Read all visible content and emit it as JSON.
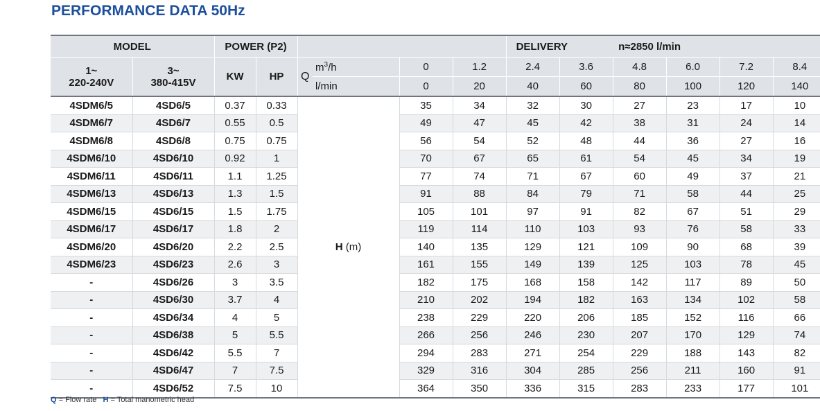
{
  "title": "PERFORMANCE DATA 50Hz",
  "headers": {
    "model": "MODEL",
    "power": "POWER (P2)",
    "delivery": "DELIVERY",
    "speed": "n≈2850 l/min",
    "single_phase_line1": "1~",
    "single_phase_line2": "220-240V",
    "three_phase_line1": "3~",
    "three_phase_line2": "380-415V",
    "kw": "KW",
    "hp": "HP",
    "q": "Q",
    "unit_m3h_base": "m",
    "unit_m3h_sup": "3",
    "unit_m3h_tail": "/h",
    "unit_lmin": "l/min",
    "h_label": "H",
    "h_unit": "(m)"
  },
  "flow_m3h": [
    "0",
    "1.2",
    "2.4",
    "3.6",
    "4.8",
    "6.0",
    "7.2",
    "8.4"
  ],
  "flow_lmin": [
    "0",
    "20",
    "40",
    "60",
    "80",
    "100",
    "120",
    "140"
  ],
  "rows": [
    {
      "m1": "4SDM6/5",
      "m3": "4SD6/5",
      "kw": "0.37",
      "hp": "0.33",
      "h": [
        "35",
        "34",
        "32",
        "30",
        "27",
        "23",
        "17",
        "10"
      ]
    },
    {
      "m1": "4SDM6/7",
      "m3": "4SD6/7",
      "kw": "0.55",
      "hp": "0.5",
      "h": [
        "49",
        "47",
        "45",
        "42",
        "38",
        "31",
        "24",
        "14"
      ]
    },
    {
      "m1": "4SDM6/8",
      "m3": "4SD6/8",
      "kw": "0.75",
      "hp": "0.75",
      "h": [
        "56",
        "54",
        "52",
        "48",
        "44",
        "36",
        "27",
        "16"
      ]
    },
    {
      "m1": "4SDM6/10",
      "m3": "4SD6/10",
      "kw": "0.92",
      "hp": "1",
      "h": [
        "70",
        "67",
        "65",
        "61",
        "54",
        "45",
        "34",
        "19"
      ]
    },
    {
      "m1": "4SDM6/11",
      "m3": "4SD6/11",
      "kw": "1.1",
      "hp": "1.25",
      "h": [
        "77",
        "74",
        "71",
        "67",
        "60",
        "49",
        "37",
        "21"
      ]
    },
    {
      "m1": "4SDM6/13",
      "m3": "4SD6/13",
      "kw": "1.3",
      "hp": "1.5",
      "h": [
        "91",
        "88",
        "84",
        "79",
        "71",
        "58",
        "44",
        "25"
      ]
    },
    {
      "m1": "4SDM6/15",
      "m3": "4SD6/15",
      "kw": "1.5",
      "hp": "1.75",
      "h": [
        "105",
        "101",
        "97",
        "91",
        "82",
        "67",
        "51",
        "29"
      ]
    },
    {
      "m1": "4SDM6/17",
      "m3": "4SD6/17",
      "kw": "1.8",
      "hp": "2",
      "h": [
        "119",
        "114",
        "110",
        "103",
        "93",
        "76",
        "58",
        "33"
      ]
    },
    {
      "m1": "4SDM6/20",
      "m3": "4SD6/20",
      "kw": "2.2",
      "hp": "2.5",
      "h": [
        "140",
        "135",
        "129",
        "121",
        "109",
        "90",
        "68",
        "39"
      ]
    },
    {
      "m1": "4SDM6/23",
      "m3": "4SD6/23",
      "kw": "2.6",
      "hp": "3",
      "h": [
        "161",
        "155",
        "149",
        "139",
        "125",
        "103",
        "78",
        "45"
      ]
    },
    {
      "m1": "-",
      "m3": "4SD6/26",
      "kw": "3",
      "hp": "3.5",
      "h": [
        "182",
        "175",
        "168",
        "158",
        "142",
        "117",
        "89",
        "50"
      ]
    },
    {
      "m1": "-",
      "m3": "4SD6/30",
      "kw": "3.7",
      "hp": "4",
      "h": [
        "210",
        "202",
        "194",
        "182",
        "163",
        "134",
        "102",
        "58"
      ]
    },
    {
      "m1": "-",
      "m3": "4SD6/34",
      "kw": "4",
      "hp": "5",
      "h": [
        "238",
        "229",
        "220",
        "206",
        "185",
        "152",
        "116",
        "66"
      ]
    },
    {
      "m1": "-",
      "m3": "4SD6/38",
      "kw": "5",
      "hp": "5.5",
      "h": [
        "266",
        "256",
        "246",
        "230",
        "207",
        "170",
        "129",
        "74"
      ]
    },
    {
      "m1": "-",
      "m3": "4SD6/42",
      "kw": "5.5",
      "hp": "7",
      "h": [
        "294",
        "283",
        "271",
        "254",
        "229",
        "188",
        "143",
        "82"
      ]
    },
    {
      "m1": "-",
      "m3": "4SD6/47",
      "kw": "7",
      "hp": "7.5",
      "h": [
        "329",
        "316",
        "304",
        "285",
        "256",
        "211",
        "160",
        "91"
      ]
    },
    {
      "m1": "-",
      "m3": "4SD6/52",
      "kw": "7.5",
      "hp": "10",
      "h": [
        "364",
        "350",
        "336",
        "315",
        "283",
        "233",
        "177",
        "101"
      ]
    }
  ],
  "legend": {
    "q_key": "Q",
    "q_text": "= Flow rate",
    "h_key": "H",
    "h_text": "= Total manometric head"
  }
}
